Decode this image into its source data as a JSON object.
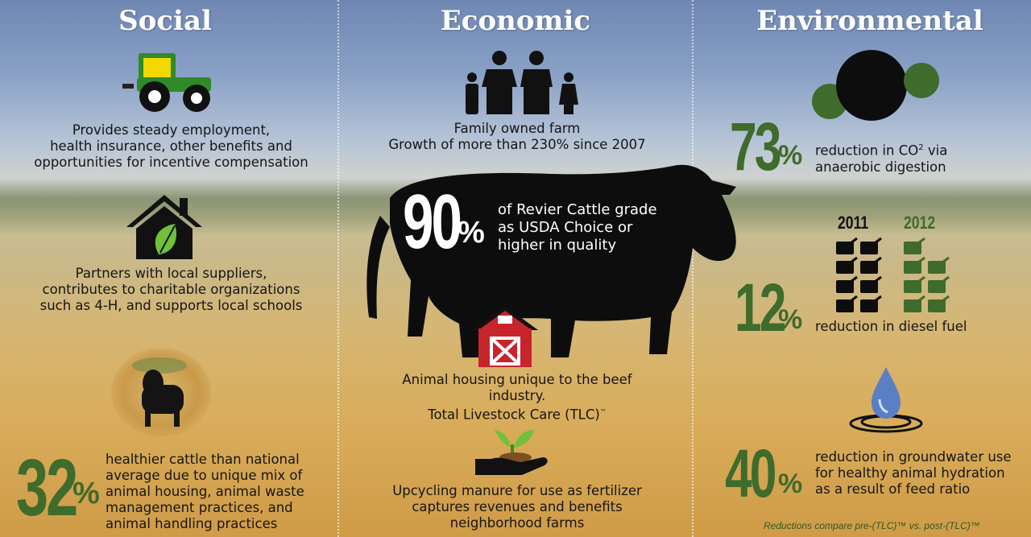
{
  "columns": {
    "social": {
      "title": "Social",
      "item1": [
        "Provides steady employment,",
        "health insurance, other benefits and",
        "opportunities for incentive compensation"
      ],
      "item2": [
        "Partners with local suppliers,",
        "contributes to charitable organizations",
        "such as 4-H, and supports local schools"
      ],
      "stat": {
        "number": "32",
        "unit": "%",
        "text": [
          "healthier cattle than national",
          "average due to unique mix of",
          "animal housing, animal waste",
          "management practices, and",
          "animal handling practices"
        ]
      }
    },
    "economic": {
      "title": "Economic",
      "item1": [
        "Family owned farm",
        "Growth of more than 230% since 2007"
      ],
      "stat": {
        "number": "90",
        "unit": "%",
        "text": [
          "of Revier Cattle grade",
          "as USDA Choice or",
          "higher in quality"
        ]
      },
      "item2": [
        "Animal housing unique to the beef",
        "industry.",
        "Total Livestock Care (TLC)",
        "™"
      ],
      "item3": [
        "Upcycling manure for use as fertilizer",
        "captures revenues and benefits",
        "neighborhood farms"
      ]
    },
    "environmental": {
      "title": "Environmental",
      "stat1": {
        "number": "73",
        "unit": "%",
        "text": [
          "reduction in CO",
          "2",
          " via",
          "anaerobic digestion"
        ]
      },
      "years": [
        "2011",
        "2012"
      ],
      "stat2": {
        "number": "12",
        "unit": "%",
        "text": "reduction in diesel fuel"
      },
      "stat3": {
        "number": "40",
        "unit": "%",
        "text": [
          "reduction in groundwater use",
          "for healthy animal hydration",
          "as a result of feed ratio"
        ]
      },
      "note": "Reductions compare pre-(TLC)™ vs. post-(TLC)™"
    }
  },
  "colors": {
    "green": "#3f6b2c",
    "tractor_green": "#2f8a2a",
    "tractor_yellow": "#f1d800",
    "barn_red": "#c8242c",
    "water_blue": "#5b7fc4"
  }
}
